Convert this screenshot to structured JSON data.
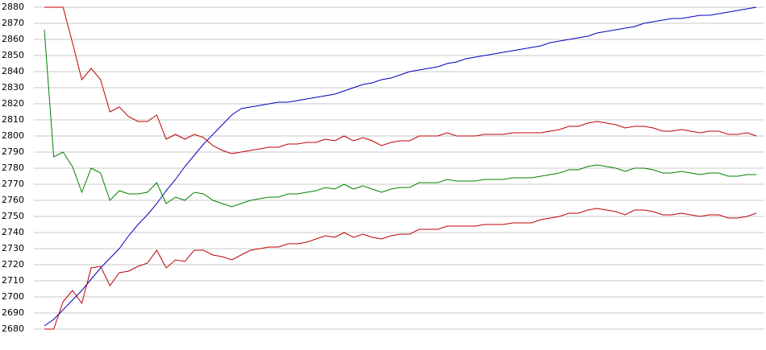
{
  "chart_data": {
    "type": "line",
    "ylim": [
      2680,
      2880
    ],
    "yticks": [
      2680,
      2690,
      2700,
      2710,
      2720,
      2730,
      2740,
      2750,
      2760,
      2770,
      2780,
      2790,
      2800,
      2810,
      2820,
      2830,
      2840,
      2850,
      2860,
      2870,
      2880
    ],
    "grid": true,
    "series": [
      {
        "color": "#0000c0",
        "values": [
          2682,
          2686,
          2692,
          2698,
          2704,
          2711,
          2718,
          2724,
          2730,
          2738,
          2745,
          2751,
          2758,
          2766,
          2773,
          2781,
          2788,
          2795,
          2801,
          2807,
          2813,
          2817,
          2818,
          2819,
          2820,
          2821,
          2821,
          2822,
          2823,
          2824,
          2825,
          2826,
          2828,
          2830,
          2832,
          2833,
          2835,
          2836,
          2838,
          2840,
          2841,
          2842,
          2843,
          2845,
          2846,
          2848,
          2849,
          2850,
          2851,
          2852,
          2853,
          2854,
          2855,
          2856,
          2858,
          2859,
          2860,
          2861,
          2862,
          2864,
          2865,
          2866,
          2867,
          2868,
          2870,
          2871,
          2872,
          2873,
          2873,
          2874,
          2875,
          2875,
          2876,
          2877,
          2878,
          2879,
          2880
        ]
      },
      {
        "color": "#c00000",
        "values": [
          2880,
          2880,
          2880,
          2858,
          2835,
          2842,
          2835,
          2815,
          2818,
          2812,
          2809,
          2809,
          2813,
          2798,
          2801,
          2798,
          2801,
          2799,
          2794,
          2791,
          2789,
          2790,
          2791,
          2792,
          2793,
          2793,
          2795,
          2795,
          2796,
          2796,
          2798,
          2797,
          2800,
          2797,
          2799,
          2797,
          2794,
          2796,
          2797,
          2797,
          2800,
          2800,
          2800,
          2802,
          2800,
          2800,
          2800,
          2801,
          2801,
          2801,
          2802,
          2802,
          2802,
          2802,
          2803,
          2804,
          2806,
          2806,
          2808,
          2809,
          2808,
          2807,
          2805,
          2806,
          2806,
          2805,
          2803,
          2803,
          2804,
          2803,
          2802,
          2803,
          2803,
          2801,
          2801,
          2802,
          2800
        ]
      },
      {
        "color": "#008000",
        "values": [
          2866,
          2787,
          2790,
          2781,
          2765,
          2780,
          2777,
          2760,
          2766,
          2764,
          2764,
          2765,
          2771,
          2758,
          2762,
          2760,
          2765,
          2764,
          2760,
          2758,
          2756,
          2758,
          2760,
          2761,
          2762,
          2762,
          2764,
          2764,
          2765,
          2766,
          2768,
          2767,
          2770,
          2767,
          2769,
          2767,
          2765,
          2767,
          2768,
          2768,
          2771,
          2771,
          2771,
          2773,
          2772,
          2772,
          2772,
          2773,
          2773,
          2773,
          2774,
          2774,
          2774,
          2775,
          2776,
          2777,
          2779,
          2779,
          2781,
          2782,
          2781,
          2780,
          2778,
          2780,
          2780,
          2779,
          2777,
          2777,
          2778,
          2777,
          2776,
          2777,
          2777,
          2775,
          2775,
          2776,
          2776
        ]
      },
      {
        "color": "#c00000",
        "values": [
          2680,
          2680,
          2697,
          2704,
          2696,
          2718,
          2719,
          2707,
          2715,
          2716,
          2719,
          2721,
          2729,
          2718,
          2723,
          2722,
          2729,
          2729,
          2726,
          2725,
          2723,
          2726,
          2729,
          2730,
          2731,
          2731,
          2733,
          2733,
          2734,
          2736,
          2738,
          2737,
          2740,
          2737,
          2739,
          2737,
          2736,
          2738,
          2739,
          2739,
          2742,
          2742,
          2742,
          2744,
          2744,
          2744,
          2744,
          2745,
          2745,
          2745,
          2746,
          2746,
          2746,
          2748,
          2749,
          2750,
          2752,
          2752,
          2754,
          2755,
          2754,
          2753,
          2751,
          2754,
          2754,
          2753,
          2751,
          2751,
          2752,
          2751,
          2750,
          2751,
          2751,
          2749,
          2749,
          2750,
          2752
        ]
      }
    ]
  }
}
